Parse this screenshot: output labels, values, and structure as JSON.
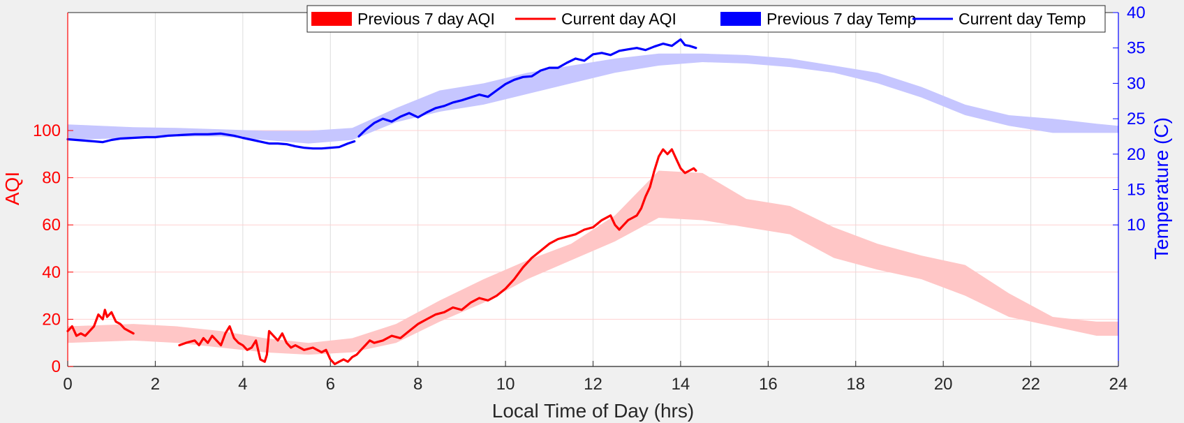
{
  "chart_data": {
    "type": "line",
    "xlabel": "Local Time of Day (hrs)",
    "ylabel_left": "AQI",
    "ylabel_right": "Temperature (C)",
    "xlim": [
      0,
      24
    ],
    "ylim_left": [
      0,
      150
    ],
    "ylim_right": [
      -10,
      40
    ],
    "xticks": [
      0,
      2,
      4,
      6,
      8,
      10,
      12,
      14,
      16,
      18,
      20,
      22,
      24
    ],
    "yticks_left": [
      0,
      20,
      40,
      60,
      80,
      100
    ],
    "yticks_right": [
      10,
      15,
      20,
      25,
      30,
      35,
      40
    ],
    "grid": true,
    "legend_position": "top-right",
    "colors": {
      "aqi": "#ff0000",
      "aqi_band": "#ffc6c6",
      "temp": "#0000ff",
      "temp_band": "#c6c6ff",
      "grid": "#dcdcdc",
      "aqi_grid": "#ffd0d0",
      "background": "#f0f0f0",
      "plot_bg": "#ffffff"
    },
    "legend": [
      {
        "label": "Previous 7 day AQI",
        "kind": "band",
        "color": "#ff0000"
      },
      {
        "label": "Current day AQI",
        "kind": "line",
        "color": "#ff0000"
      },
      {
        "label": "Previous 7 day Temp",
        "kind": "band",
        "color": "#0000ff"
      },
      {
        "label": "Current day Temp",
        "kind": "line",
        "color": "#0000ff"
      }
    ],
    "series": [
      {
        "name": "Previous 7 day AQI",
        "kind": "band",
        "axis": "left",
        "x": [
          0,
          1.5,
          2.5,
          3.5,
          4.5,
          5.5,
          6.5,
          7.5,
          8.5,
          9.5,
          10.5,
          11.5,
          12.5,
          13.5,
          14.5,
          15.5,
          16.5,
          17.5,
          18.5,
          19.5,
          20.5,
          21.5,
          22.5,
          23.5,
          24
        ],
        "upper": [
          17,
          18,
          17,
          15,
          12,
          10,
          12,
          18,
          28,
          37,
          45,
          52,
          64,
          83,
          82,
          71,
          68,
          59,
          52,
          47,
          43,
          31,
          21,
          19,
          19
        ],
        "lower": [
          10,
          11,
          10,
          8,
          6,
          5,
          6,
          10,
          19,
          27,
          37,
          45,
          53,
          63,
          62,
          59,
          56,
          46,
          41,
          37,
          30,
          21,
          17,
          13,
          13
        ]
      },
      {
        "name": "Previous 7 day Temp",
        "kind": "band",
        "axis": "right",
        "x": [
          0,
          1.5,
          2.5,
          3.5,
          4.5,
          5.5,
          6.5,
          7.5,
          8.5,
          9.5,
          10.5,
          11.5,
          12.5,
          13.5,
          14.5,
          15.5,
          16.5,
          17.5,
          18.5,
          19.5,
          20.5,
          21.5,
          22.5,
          23.5,
          24
        ],
        "upper": [
          24.2,
          23.8,
          23.7,
          23.5,
          23.3,
          23.3,
          23.7,
          26.5,
          29.0,
          30.0,
          31.5,
          32.5,
          33.5,
          34.2,
          34.2,
          34.0,
          33.5,
          32.5,
          31.5,
          29.5,
          27.0,
          25.5,
          25.0,
          24.3,
          24.0
        ],
        "lower": [
          22.0,
          22.3,
          22.5,
          22.5,
          22.0,
          21.5,
          22.0,
          24.5,
          26.0,
          27.0,
          28.5,
          30.0,
          31.5,
          32.5,
          33.0,
          32.8,
          32.3,
          31.5,
          30.0,
          28.0,
          25.5,
          24.0,
          23.0,
          23.0,
          23.0
        ]
      },
      {
        "name": "Current day AQI",
        "kind": "line",
        "axis": "left",
        "segments": [
          {
            "x": [
              0,
              0.1,
              0.2,
              0.3,
              0.4,
              0.5,
              0.6,
              0.7,
              0.8,
              0.85,
              0.9,
              1.0,
              1.1,
              1.2,
              1.3,
              1.4,
              1.5
            ],
            "y": [
              15,
              17,
              13,
              14,
              13,
              15,
              17,
              22,
              20,
              24,
              21,
              23,
              19,
              18,
              16,
              15,
              14
            ]
          },
          {
            "x": [
              2.55,
              2.7,
              2.9,
              3.0,
              3.1,
              3.2,
              3.3,
              3.4,
              3.5,
              3.6,
              3.7,
              3.8,
              3.9,
              4.0,
              4.1,
              4.2,
              4.3,
              4.4,
              4.5,
              4.55,
              4.6,
              4.7,
              4.8,
              4.9,
              5.0,
              5.1,
              5.2,
              5.4,
              5.6,
              5.8,
              5.9,
              6.0,
              6.05,
              6.1,
              6.2,
              6.3,
              6.4,
              6.5,
              6.6,
              6.7,
              6.8,
              6.9,
              7.0,
              7.2,
              7.4,
              7.6,
              7.8,
              8.0,
              8.2,
              8.4,
              8.6,
              8.8,
              9.0,
              9.2,
              9.4,
              9.6,
              9.8,
              10.0,
              10.2,
              10.4,
              10.6,
              10.8,
              11.0,
              11.2,
              11.4,
              11.6,
              11.8,
              12.0,
              12.2,
              12.4,
              12.5,
              12.6,
              12.7,
              12.8,
              12.9,
              13.0,
              13.1,
              13.2,
              13.3,
              13.4,
              13.5,
              13.6,
              13.7,
              13.8,
              13.9,
              14.0,
              14.1,
              14.2,
              14.3,
              14.35
            ],
            "y": [
              9,
              10,
              11,
              9,
              12,
              10,
              13,
              11,
              9,
              14,
              17,
              12,
              10,
              9,
              7,
              8,
              11,
              3,
              2,
              5,
              15,
              13,
              11,
              14,
              10,
              8,
              9,
              7,
              8,
              6,
              7,
              3,
              2,
              1,
              2,
              3,
              2,
              4,
              5,
              7,
              9,
              11,
              10,
              11,
              13,
              12,
              15,
              18,
              20,
              22,
              23,
              25,
              24,
              27,
              29,
              28,
              30,
              33,
              37,
              42,
              46,
              49,
              52,
              54,
              55,
              56,
              58,
              59,
              62,
              64,
              60,
              58,
              60,
              62,
              63,
              64,
              67,
              72,
              76,
              83,
              89,
              92,
              90,
              92,
              88,
              84,
              82,
              83,
              84,
              83
            ]
          }
        ]
      },
      {
        "name": "Current day Temp",
        "kind": "line",
        "axis": "right",
        "segments": [
          {
            "x": [
              0,
              0.2,
              0.4,
              0.6,
              0.8,
              1.0,
              1.2,
              1.5,
              1.8,
              2.0,
              2.3,
              2.6,
              2.9,
              3.2,
              3.5,
              3.8,
              4.0,
              4.3,
              4.6,
              4.8,
              5.0,
              5.2,
              5.4,
              5.6,
              5.8,
              6.0,
              6.2,
              6.4,
              6.55
            ],
            "y": [
              22.1,
              22.0,
              21.9,
              21.8,
              21.7,
              22.0,
              22.2,
              22.3,
              22.4,
              22.4,
              22.6,
              22.7,
              22.8,
              22.8,
              22.9,
              22.6,
              22.3,
              21.9,
              21.5,
              21.5,
              21.4,
              21.1,
              20.9,
              20.8,
              20.8,
              20.9,
              21.0,
              21.5,
              21.8
            ]
          },
          {
            "x": [
              6.65,
              6.8,
              7.0,
              7.2,
              7.4,
              7.6,
              7.8,
              8.0,
              8.2,
              8.4,
              8.6,
              8.8,
              9.0,
              9.2,
              9.4,
              9.6,
              9.8,
              10.0,
              10.2,
              10.4,
              10.6,
              10.8,
              11.0,
              11.2,
              11.4,
              11.6,
              11.8,
              12.0,
              12.2,
              12.4,
              12.6,
              12.8,
              13.0,
              13.2,
              13.4,
              13.6,
              13.8,
              14.0,
              14.1,
              14.2,
              14.35
            ],
            "y": [
              22.5,
              23.4,
              24.4,
              25.0,
              24.6,
              25.3,
              25.8,
              25.2,
              25.9,
              26.5,
              26.8,
              27.3,
              27.6,
              28.0,
              28.4,
              28.1,
              29.0,
              29.9,
              30.5,
              30.9,
              31.0,
              31.8,
              32.2,
              32.2,
              32.9,
              33.5,
              33.2,
              34.1,
              34.3,
              34.0,
              34.6,
              34.8,
              35.0,
              34.7,
              35.2,
              35.6,
              35.3,
              36.2,
              35.4,
              35.3,
              35.0
            ]
          }
        ]
      }
    ]
  }
}
